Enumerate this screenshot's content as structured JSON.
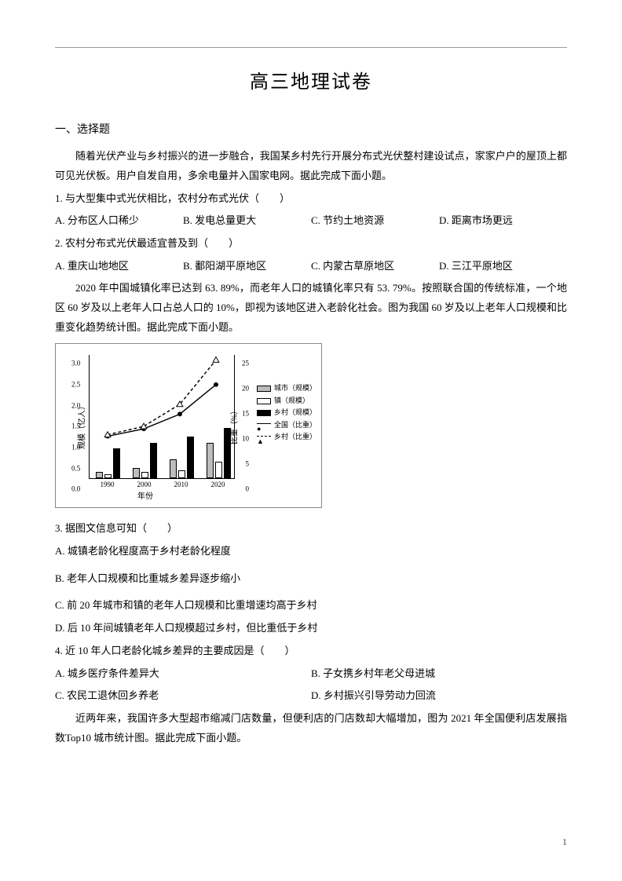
{
  "page": {
    "title": "高三地理试卷",
    "section1": "一、选择题",
    "page_number": "1"
  },
  "passage1": "随着光伏产业与乡村振兴的进一步融合，我国某乡村先行开展分布式光伏整村建设试点，家家户户的屋顶上都可见光伏板。用户自发自用，多余电量并入国家电网。据此完成下面小题。",
  "q1": {
    "stem": "1. 与大型集中式光伏相比，农村分布式光伏（　　）",
    "A": "A. 分布区人口稀少",
    "B": "B. 发电总量更大",
    "C": "C. 节约土地资源",
    "D": "D. 距离市场更远"
  },
  "q2": {
    "stem": "2. 农村分布式光伏最适宜普及到（　　）",
    "A": "A. 重庆山地地区",
    "B": "B. 鄱阳湖平原地区",
    "C": "C. 内蒙古草原地区",
    "D": "D. 三江平原地区"
  },
  "passage2": "2020 年中国城镇化率已达到 63. 89%，而老年人口的城镇化率只有 53. 79%。按照联合国的传统标准，一个地区 60 岁及以上老年人口占总人口的 10%，即视为该地区进入老龄化社会。图为我国 60 岁及以上老年人口规模和比重变化趋势统计图。据此完成下面小题。",
  "chart": {
    "type": "bar+line",
    "background_color": "#ffffff",
    "border_color": "#888888",
    "text_color": "#000000",
    "font_size": 9,
    "y_left": {
      "label": "规模（亿人）",
      "min": 0,
      "max": 3.0,
      "ticks": [
        0,
        0.5,
        1.0,
        1.5,
        2.0,
        2.5,
        3.0
      ]
    },
    "y_right": {
      "label": "比重（%）",
      "min": 0,
      "max": 25,
      "ticks": [
        0,
        5,
        10,
        15,
        20,
        25
      ]
    },
    "x": {
      "label": "年份",
      "categories": [
        "1990",
        "2000",
        "2010",
        "2020"
      ]
    },
    "bar_colors": {
      "city": "#bdbdbd",
      "town": "#ffffff",
      "rural": "#000000"
    },
    "bar_border": "#000000",
    "line_colors": {
      "national": "#000000",
      "rural": "#000000"
    },
    "line_styles": {
      "national": "solid",
      "rural": "dashed"
    },
    "marker": {
      "national": "circle",
      "rural": "triangle"
    },
    "series_bars": {
      "city": [
        0.15,
        0.25,
        0.45,
        0.85
      ],
      "town": [
        0.1,
        0.15,
        0.2,
        0.4
      ],
      "rural": [
        0.72,
        0.85,
        1.0,
        1.2
      ]
    },
    "series_lines_pct": {
      "national": [
        8.5,
        10.0,
        13.0,
        19.0
      ],
      "rural": [
        8.8,
        10.5,
        15.0,
        24.0
      ]
    },
    "legend": {
      "city": "城市（规模）",
      "town": "镇（规模）",
      "rural_bar": "乡村（规模）",
      "national_line": "全国（比重）",
      "rural_line": "乡村（比重）"
    }
  },
  "q3": {
    "stem": "3. 据图文信息可知（　　）",
    "A": "A. 城镇老龄化程度高于乡村老龄化程度",
    "B": "B. 老年人口规模和比重城乡差异逐步缩小",
    "C": "C. 前 20 年城市和镇的老年人口规模和比重增速均高于乡村",
    "D": "D. 后 10 年间城镇老年人口规模超过乡村，但比重低于乡村"
  },
  "q4": {
    "stem": "4. 近 10 年人口老龄化城乡差异的主要成因是（　　）",
    "A": "A. 城乡医疗条件差异大",
    "B": "B. 子女携乡村年老父母进城",
    "C": "C. 农民工退休回乡养老",
    "D": "D. 乡村振兴引导劳动力回流"
  },
  "passage3": "近两年来，我国许多大型超市缩减门店数量，但便利店的门店数却大幅增加，图为 2021 年全国便利店发展指数Top10 城市统计图。据此完成下面小题。"
}
